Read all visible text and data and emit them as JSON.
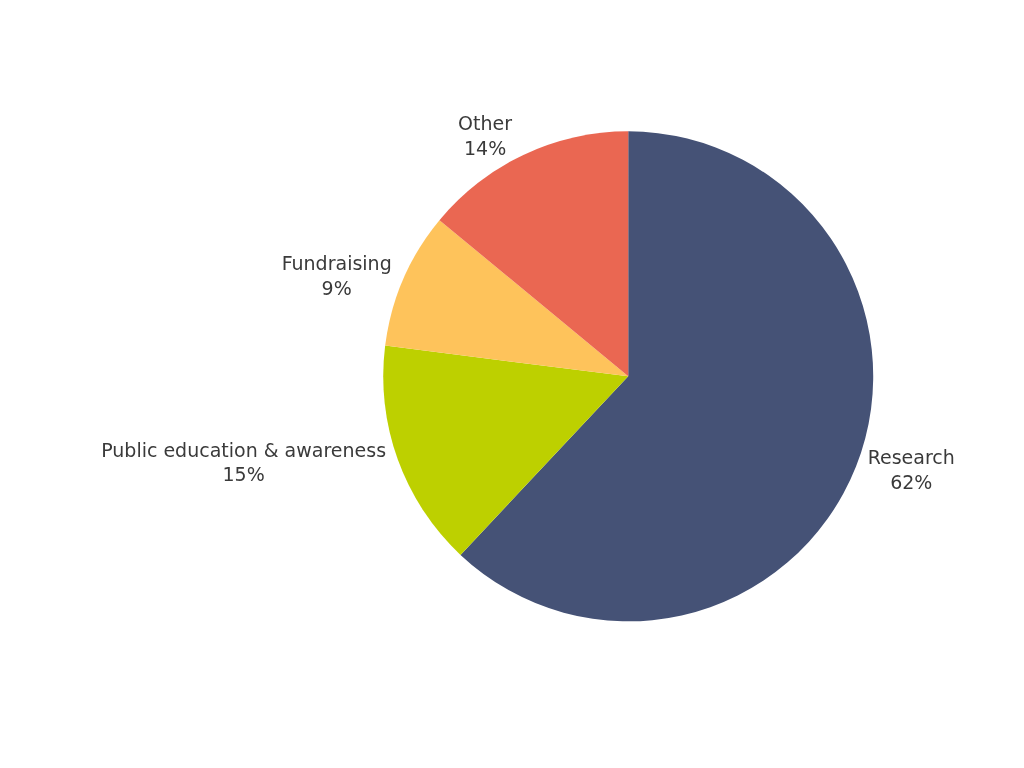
{
  "chart_data": {
    "type": "pie",
    "categories": [
      "Research",
      "Public education & awareness",
      "Fundraising",
      "Other"
    ],
    "values": [
      62,
      15,
      9,
      14
    ],
    "value_labels": [
      "62%",
      "15%",
      "9%",
      "14%"
    ],
    "colors": [
      "#455276",
      "#bdd000",
      "#fec35b",
      "#ea6752"
    ],
    "legend": false
  }
}
